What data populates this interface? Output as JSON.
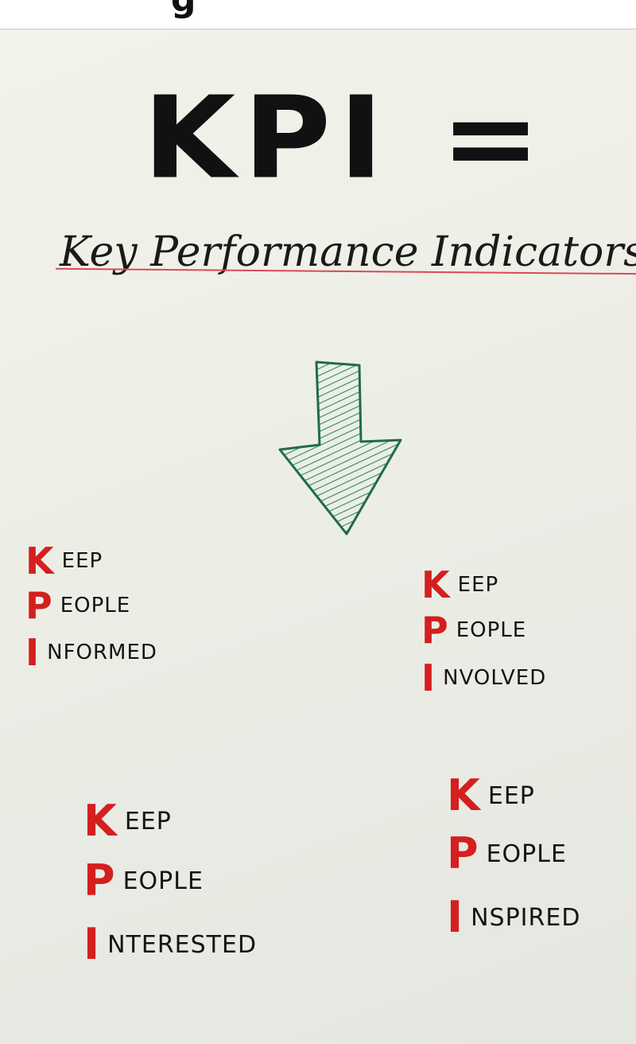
{
  "top_strip": {
    "partial_text": "g"
  },
  "poster": {
    "title": "KPI =",
    "subtitle": "Key Performance Indicators",
    "arrow_icon": "down-arrow-icon",
    "colors": {
      "accent": "#d41f1f",
      "arrow": "#2e8a5a",
      "strike": "#d94a55"
    },
    "blocks": [
      {
        "rows": [
          {
            "letter": "K",
            "word": "EEP"
          },
          {
            "letter": "P",
            "word": "EOPLE"
          },
          {
            "letter": "I",
            "word": "NFORMED"
          }
        ]
      },
      {
        "rows": [
          {
            "letter": "K",
            "word": "EEP"
          },
          {
            "letter": "P",
            "word": "EOPLE"
          },
          {
            "letter": "I",
            "word": "NVOLVED"
          }
        ]
      },
      {
        "rows": [
          {
            "letter": "K",
            "word": "EEP"
          },
          {
            "letter": "P",
            "word": "EOPLE"
          },
          {
            "letter": "I",
            "word": "NTERESTED"
          }
        ]
      },
      {
        "rows": [
          {
            "letter": "K",
            "word": "EEP"
          },
          {
            "letter": "P",
            "word": "EOPLE"
          },
          {
            "letter": "I",
            "word": "NSPIRED"
          }
        ]
      }
    ]
  }
}
